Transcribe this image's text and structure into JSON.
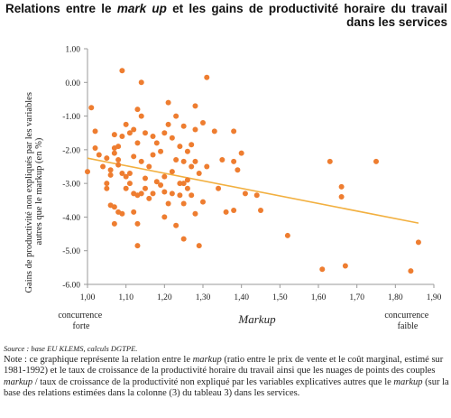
{
  "title": {
    "part1": "Relations entre le ",
    "italic": "mark up",
    "part2": " et les gains de productivité horaire du travail dans les services"
  },
  "chart_data": {
    "type": "scatter",
    "xlabel": "Markup",
    "ylabel": "Gains de productivité non expliqués par les variables autres que le markup (en %)",
    "xlim": [
      1.0,
      1.9
    ],
    "ylim": [
      -6.0,
      1.0
    ],
    "x_ticks": [
      "1,00",
      "1,10",
      "1,20",
      "1,30",
      "1,40",
      "1,50",
      "1,60",
      "1,70",
      "1,80",
      "1,90"
    ],
    "y_ticks": [
      "1.00",
      "0.00",
      "-1.00",
      "-2.00",
      "-3.00",
      "-4.00",
      "-5.00",
      "-6.00"
    ],
    "x_end_labels": {
      "left": [
        "concurrence",
        "forte"
      ],
      "right": [
        "concurrence",
        "faible"
      ]
    },
    "grid": false,
    "colors": {
      "points": "#ee7d30",
      "trend": "#f2b040",
      "axes": "#9a9a9a"
    },
    "trendline": {
      "x": [
        1.0,
        1.86
      ],
      "y": [
        -2.25,
        -4.18
      ]
    },
    "points": [
      [
        1.0,
        -2.65
      ],
      [
        1.01,
        -0.75
      ],
      [
        1.02,
        -1.45
      ],
      [
        1.02,
        -1.95
      ],
      [
        1.03,
        -2.15
      ],
      [
        1.04,
        -2.5
      ],
      [
        1.05,
        -2.25
      ],
      [
        1.05,
        -3.0
      ],
      [
        1.05,
        -3.15
      ],
      [
        1.06,
        -2.6
      ],
      [
        1.06,
        -2.75
      ],
      [
        1.06,
        -3.65
      ],
      [
        1.07,
        -1.55
      ],
      [
        1.07,
        -1.95
      ],
      [
        1.07,
        -2.1
      ],
      [
        1.07,
        -3.7
      ],
      [
        1.07,
        -4.2
      ],
      [
        1.08,
        -1.9
      ],
      [
        1.08,
        -2.3
      ],
      [
        1.08,
        -2.45
      ],
      [
        1.08,
        -3.85
      ],
      [
        1.09,
        0.35
      ],
      [
        1.09,
        -1.6
      ],
      [
        1.09,
        -2.7
      ],
      [
        1.09,
        -3.9
      ],
      [
        1.1,
        -1.25
      ],
      [
        1.1,
        -2.8
      ],
      [
        1.1,
        -3.15
      ],
      [
        1.11,
        -1.5
      ],
      [
        1.11,
        -2.7
      ],
      [
        1.11,
        -3.0
      ],
      [
        1.12,
        -1.4
      ],
      [
        1.12,
        -2.2
      ],
      [
        1.12,
        -3.3
      ],
      [
        1.12,
        -3.85
      ],
      [
        1.13,
        -0.8
      ],
      [
        1.13,
        -1.8
      ],
      [
        1.13,
        -3.35
      ],
      [
        1.13,
        -4.2
      ],
      [
        1.13,
        -4.85
      ],
      [
        1.14,
        0.0
      ],
      [
        1.14,
        -1.0
      ],
      [
        1.14,
        -2.35
      ],
      [
        1.14,
        -3.3
      ],
      [
        1.15,
        -1.5
      ],
      [
        1.15,
        -2.85
      ],
      [
        1.15,
        -3.15
      ],
      [
        1.16,
        -2.5
      ],
      [
        1.16,
        -3.45
      ],
      [
        1.17,
        -1.6
      ],
      [
        1.17,
        -2.15
      ],
      [
        1.17,
        -3.3
      ],
      [
        1.18,
        -1.8
      ],
      [
        1.18,
        -2.95
      ],
      [
        1.19,
        -2.05
      ],
      [
        1.19,
        -3.05
      ],
      [
        1.2,
        -1.5
      ],
      [
        1.2,
        -2.8
      ],
      [
        1.2,
        -3.25
      ],
      [
        1.2,
        -4.0
      ],
      [
        1.21,
        -0.6
      ],
      [
        1.21,
        -1.25
      ],
      [
        1.21,
        -3.6
      ],
      [
        1.22,
        -1.65
      ],
      [
        1.22,
        -2.65
      ],
      [
        1.22,
        -3.3
      ],
      [
        1.23,
        -1.0
      ],
      [
        1.23,
        -2.3
      ],
      [
        1.23,
        -4.25
      ],
      [
        1.24,
        -1.9
      ],
      [
        1.24,
        -3.0
      ],
      [
        1.24,
        -3.35
      ],
      [
        1.25,
        -1.3
      ],
      [
        1.25,
        -2.35
      ],
      [
        1.25,
        -3.0
      ],
      [
        1.25,
        -3.6
      ],
      [
        1.25,
        -4.65
      ],
      [
        1.26,
        -2.05
      ],
      [
        1.26,
        -2.9
      ],
      [
        1.26,
        -3.15
      ],
      [
        1.27,
        -1.85
      ],
      [
        1.27,
        -2.5
      ],
      [
        1.27,
        -3.35
      ],
      [
        1.28,
        -0.7
      ],
      [
        1.28,
        -1.4
      ],
      [
        1.28,
        -2.35
      ],
      [
        1.28,
        -3.9
      ],
      [
        1.29,
        -2.7
      ],
      [
        1.29,
        -4.85
      ],
      [
        1.3,
        -1.2
      ],
      [
        1.3,
        -3.55
      ],
      [
        1.31,
        0.15
      ],
      [
        1.31,
        -2.5
      ],
      [
        1.33,
        -1.45
      ],
      [
        1.34,
        -3.15
      ],
      [
        1.35,
        -2.3
      ],
      [
        1.36,
        -3.85
      ],
      [
        1.38,
        -1.45
      ],
      [
        1.38,
        -2.35
      ],
      [
        1.38,
        -3.8
      ],
      [
        1.39,
        -2.6
      ],
      [
        1.4,
        -2.1
      ],
      [
        1.41,
        -3.3
      ],
      [
        1.44,
        -3.35
      ],
      [
        1.45,
        -3.8
      ],
      [
        1.52,
        -4.55
      ],
      [
        1.61,
        -5.55
      ],
      [
        1.63,
        -2.35
      ],
      [
        1.66,
        -3.4
      ],
      [
        1.66,
        -3.1
      ],
      [
        1.67,
        -5.45
      ],
      [
        1.75,
        -2.35
      ],
      [
        1.84,
        -5.6
      ],
      [
        1.86,
        -4.75
      ]
    ]
  },
  "footer": {
    "source": "Source : base EU KLEMS, calculs DGTPE.",
    "note": {
      "p1": "Note : ce graphique représente la relation entre le ",
      "i1": "markup",
      "p2": " (ratio entre le prix de vente et le coût marginal, estimé sur 1981-1992) et le taux de croissance de la productivité horaire du travail ainsi que les nuages de points des couples ",
      "i2": "markup",
      "p3": " / taux de croissance de la productivité non expliqué par les variables explicatives autres que le ",
      "i3": "markup",
      "p4": " (sur la base des relations estimées dans la colonne (3) du tableau 3) dans les services."
    }
  }
}
